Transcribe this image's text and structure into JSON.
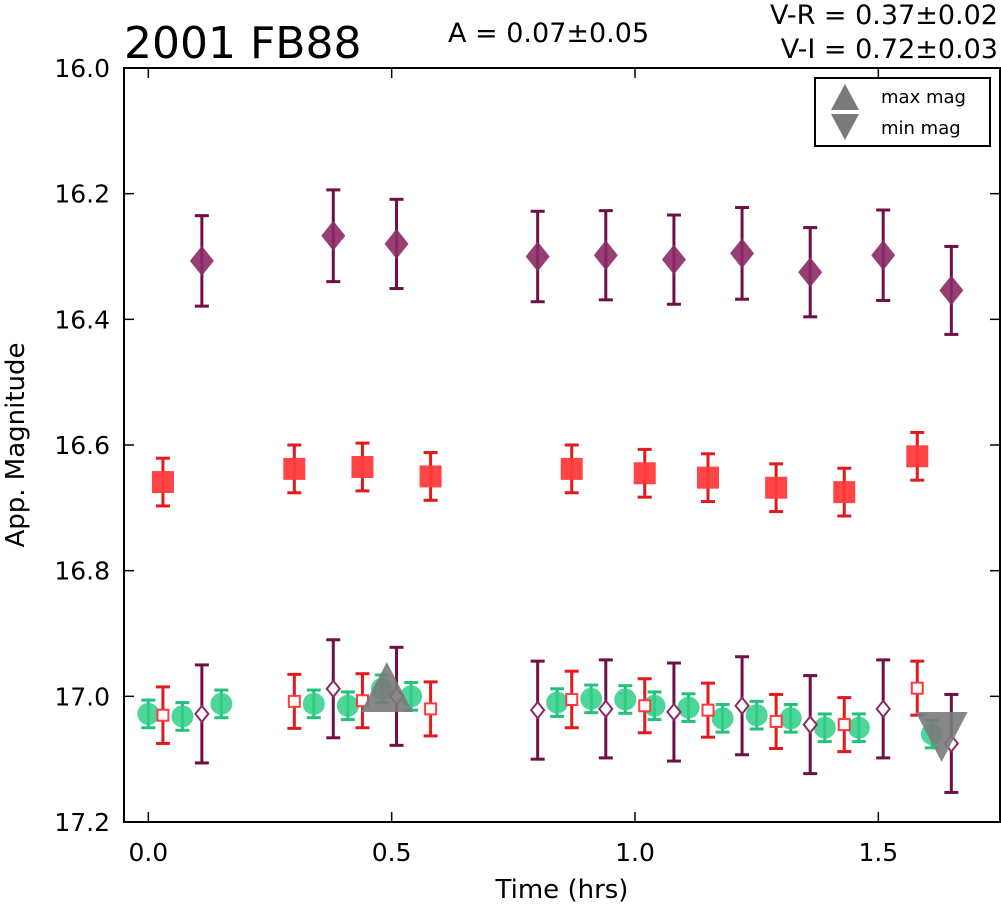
{
  "chart_data": {
    "type": "scatter",
    "title": "2001 FB88",
    "xlabel": "Time (hrs)",
    "ylabel": "App. Magnitude",
    "xlim": [
      -0.05,
      1.75
    ],
    "ylim": [
      17.2,
      16.0
    ],
    "y_inverted": true,
    "xticks": [
      "0.0",
      "0.5",
      "1.0",
      "1.5"
    ],
    "xtick_values": [
      0.0,
      0.5,
      1.0,
      1.5
    ],
    "yticks": [
      "16.0",
      "16.2",
      "16.4",
      "16.6",
      "16.8",
      "17.0",
      "17.2"
    ],
    "ytick_values": [
      16.0,
      16.2,
      16.4,
      16.6,
      16.8,
      17.0,
      17.2
    ],
    "annotations": [
      {
        "text": "A  = 0.07±0.05"
      },
      {
        "text": "V-R = 0.37±0.02"
      },
      {
        "text": "V-I  = 0.72±0.03"
      }
    ],
    "legend": {
      "position": "top-right",
      "entries": [
        {
          "label": "max mag",
          "marker": "triangle-up",
          "color": "#7a7a7a"
        },
        {
          "label": "min mag",
          "marker": "triangle-down",
          "color": "#7a7a7a"
        }
      ]
    },
    "series": [
      {
        "marker": "diamond-filled",
        "color": "#8b2a66",
        "errcolor": "#6e0f45",
        "x": [
          0.11,
          0.38,
          0.51,
          0.8,
          0.94,
          1.08,
          1.22,
          1.36,
          1.51,
          1.65
        ],
        "y": [
          16.307,
          16.267,
          16.28,
          16.3,
          16.298,
          16.305,
          16.295,
          16.325,
          16.298,
          16.354
        ],
        "err": [
          0.072,
          0.073,
          0.071,
          0.072,
          0.071,
          0.071,
          0.073,
          0.071,
          0.072,
          0.07
        ]
      },
      {
        "marker": "square-filled",
        "color": "#ff3b3b",
        "errcolor": "#e31a1c",
        "x": [
          0.03,
          0.3,
          0.44,
          0.58,
          0.87,
          1.02,
          1.15,
          1.29,
          1.43,
          1.58
        ],
        "y": [
          16.659,
          16.638,
          16.635,
          16.65,
          16.638,
          16.645,
          16.652,
          16.668,
          16.675,
          16.618
        ],
        "err": [
          0.038,
          0.038,
          0.038,
          0.038,
          0.038,
          0.038,
          0.038,
          0.038,
          0.038,
          0.038
        ]
      },
      {
        "marker": "circle-filled",
        "color": "#2ecf85",
        "errcolor": "#22c27d",
        "x": [
          0.0,
          0.07,
          0.15,
          0.34,
          0.41,
          0.48,
          0.54,
          0.84,
          0.91,
          0.98,
          1.04,
          1.11,
          1.18,
          1.25,
          1.32,
          1.39,
          1.46,
          1.61
        ],
        "y": [
          17.028,
          17.032,
          17.012,
          17.012,
          17.015,
          16.988,
          17.0,
          17.01,
          17.004,
          17.005,
          17.015,
          17.018,
          17.035,
          17.03,
          17.035,
          17.05,
          17.05,
          17.06
        ],
        "err": [
          0.022,
          0.022,
          0.022,
          0.022,
          0.022,
          0.022,
          0.022,
          0.022,
          0.022,
          0.022,
          0.022,
          0.022,
          0.022,
          0.022,
          0.022,
          0.022,
          0.022,
          0.022
        ]
      },
      {
        "marker": "square-open",
        "color": "#ff3b3b",
        "errcolor": "#e31a1c",
        "x": [
          0.03,
          0.3,
          0.44,
          0.58,
          0.87,
          1.02,
          1.15,
          1.29,
          1.43,
          1.58
        ],
        "y": [
          17.03,
          17.008,
          17.007,
          17.02,
          17.005,
          17.015,
          17.022,
          17.04,
          17.045,
          16.987
        ],
        "err": [
          0.045,
          0.043,
          0.043,
          0.043,
          0.045,
          0.043,
          0.043,
          0.043,
          0.043,
          0.043
        ]
      },
      {
        "marker": "diamond-open",
        "color": "#8b2a66",
        "errcolor": "#6e0f45",
        "x": [
          0.11,
          0.38,
          0.51,
          0.8,
          0.94,
          1.08,
          1.22,
          1.36,
          1.51,
          1.65
        ],
        "y": [
          17.028,
          16.988,
          17.0,
          17.022,
          17.02,
          17.025,
          17.015,
          17.045,
          17.02,
          17.075
        ],
        "err": [
          0.078,
          0.078,
          0.078,
          0.078,
          0.078,
          0.078,
          0.078,
          0.078,
          0.078,
          0.078
        ]
      }
    ],
    "extrema": [
      {
        "type": "max",
        "marker": "triangle-up",
        "color": "#7a7a7a",
        "x": 0.49,
        "y": 16.99
      },
      {
        "type": "min",
        "marker": "triangle-down",
        "color": "#7a7a7a",
        "x": 1.63,
        "y": 17.06
      }
    ]
  }
}
